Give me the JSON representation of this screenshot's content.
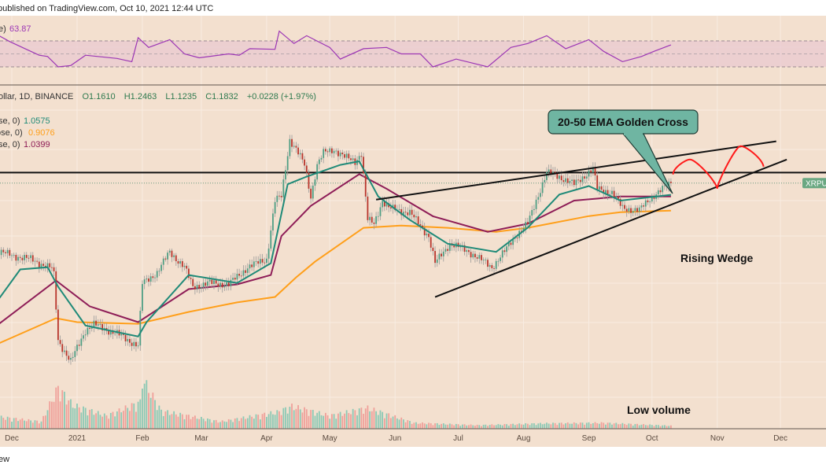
{
  "header": {
    "published": "published on TradingView.com, Oct 10, 2021 12:44 UTC"
  },
  "footer": {
    "brand_fragment": "ew"
  },
  "rsi_legend": {
    "label": "e)",
    "value": "63.87"
  },
  "legend": {
    "symbol": "ollar, 1D, BINANCE",
    "open": "O1.1610",
    "high": "H1.2463",
    "low": "L1.1235",
    "close": "C1.1832",
    "change": "+0.0228 (+1.97%)"
  },
  "ema_legend": [
    {
      "label": "se, 0)",
      "value": "1.0575",
      "color": "#1f8a78"
    },
    {
      "label": "ose, 0)",
      "value": "0.9076",
      "color": "#ff9f1a"
    },
    {
      "label": "se, 0)",
      "value": "1.0399",
      "color": "#8e1d57"
    }
  ],
  "annotations": {
    "callout": "20-50 EMA Golden Cross",
    "pattern": "Rising Wedge",
    "volume_note": "Low volume",
    "price_tag": "XRPUS"
  },
  "colors": {
    "background": "#f3e0cf",
    "up": "#4e9e84",
    "down": "#b8352c",
    "rsi": "#9c36b5",
    "callout": "#6fb5a2",
    "projection": "#ff1a1a"
  },
  "chart_data": {
    "type": "candlestick",
    "scale": "log",
    "ylim": [
      0.111,
      3.0
    ],
    "grid": true,
    "x_ticks": [
      {
        "label": "Dec",
        "date": "2020-12-01"
      },
      {
        "label": "2021",
        "date": "2021-01-01"
      },
      {
        "label": "Feb",
        "date": "2021-02-01"
      },
      {
        "label": "Mar",
        "date": "2021-03-01"
      },
      {
        "label": "Apr",
        "date": "2021-04-01"
      },
      {
        "label": "May",
        "date": "2021-05-01"
      },
      {
        "label": "Jun",
        "date": "2021-06-01"
      },
      {
        "label": "Jul",
        "date": "2021-07-01"
      },
      {
        "label": "Aug",
        "date": "2021-08-01"
      },
      {
        "label": "Sep",
        "date": "2021-09-01"
      },
      {
        "label": "Oct",
        "date": "2021-10-01"
      },
      {
        "label": "Nov",
        "date": "2021-11-01"
      },
      {
        "label": "Dec",
        "date": "2021-12-01"
      }
    ],
    "close": [
      [
        "2020-11-25",
        0.61
      ],
      [
        "2020-12-01",
        0.59
      ],
      [
        "2020-12-10",
        0.568
      ],
      [
        "2020-12-20",
        0.52
      ],
      [
        "2020-12-21",
        0.488
      ],
      [
        "2020-12-23",
        0.26
      ],
      [
        "2020-12-29",
        0.212
      ],
      [
        "2021-01-05",
        0.287
      ],
      [
        "2021-01-09",
        0.303
      ],
      [
        "2021-01-20",
        0.277
      ],
      [
        "2021-01-30",
        0.247
      ],
      [
        "2021-02-01",
        0.45
      ],
      [
        "2021-02-08",
        0.5
      ],
      [
        "2021-02-14",
        0.61
      ],
      [
        "2021-02-21",
        0.526
      ],
      [
        "2021-02-25",
        0.436
      ],
      [
        "2021-03-05",
        0.452
      ],
      [
        "2021-03-14",
        0.446
      ],
      [
        "2021-03-23",
        0.526
      ],
      [
        "2021-04-01",
        0.568
      ],
      [
        "2021-04-05",
        1.0
      ],
      [
        "2021-04-08",
        1.04
      ],
      [
        "2021-04-12",
        1.8
      ],
      [
        "2021-04-15",
        1.64
      ],
      [
        "2021-04-19",
        1.41
      ],
      [
        "2021-04-22",
        1.04
      ],
      [
        "2021-04-25",
        1.41
      ],
      [
        "2021-04-28",
        1.58
      ],
      [
        "2021-05-03",
        1.64
      ],
      [
        "2021-05-08",
        1.52
      ],
      [
        "2021-05-13",
        1.46
      ],
      [
        "2021-05-16",
        1.58
      ],
      [
        "2021-05-19",
        0.83
      ],
      [
        "2021-05-22",
        0.8
      ],
      [
        "2021-05-26",
        1.0
      ],
      [
        "2021-05-29",
        0.93
      ],
      [
        "2021-06-08",
        0.89
      ],
      [
        "2021-06-17",
        0.71
      ],
      [
        "2021-06-20",
        0.547
      ],
      [
        "2021-06-27",
        0.661
      ],
      [
        "2021-07-06",
        0.612
      ],
      [
        "2021-07-17",
        0.526
      ],
      [
        "2021-07-23",
        0.612
      ],
      [
        "2021-07-28",
        0.71
      ],
      [
        "2021-08-03",
        0.8
      ],
      [
        "2021-08-07",
        1.0
      ],
      [
        "2021-08-12",
        1.31
      ],
      [
        "2021-08-18",
        1.26
      ],
      [
        "2021-08-25",
        1.17
      ],
      [
        "2021-09-03",
        1.36
      ],
      [
        "2021-09-05",
        1.12
      ],
      [
        "2021-09-12",
        1.08
      ],
      [
        "2021-09-17",
        0.93
      ],
      [
        "2021-09-25",
        0.91
      ],
      [
        "2021-10-01",
        1.04
      ],
      [
        "2021-10-10",
        1.1832
      ]
    ],
    "ema20": [
      [
        "2020-11-25",
        0.389
      ],
      [
        "2020-12-05",
        0.515
      ],
      [
        "2020-12-18",
        0.526
      ],
      [
        "2020-12-23",
        0.436
      ],
      [
        "2021-01-05",
        0.3
      ],
      [
        "2021-01-30",
        0.27
      ],
      [
        "2021-02-03",
        0.31
      ],
      [
        "2021-02-23",
        0.488
      ],
      [
        "2021-03-18",
        0.452
      ],
      [
        "2021-04-03",
        0.547
      ],
      [
        "2021-04-11",
        1.17
      ],
      [
        "2021-04-20",
        1.26
      ],
      [
        "2021-05-06",
        1.41
      ],
      [
        "2021-05-15",
        1.46
      ],
      [
        "2021-05-24",
        1.04
      ],
      [
        "2021-06-08",
        0.83
      ],
      [
        "2021-06-26",
        0.66
      ],
      [
        "2021-07-19",
        0.61
      ],
      [
        "2021-08-03",
        0.77
      ],
      [
        "2021-08-18",
        1.06
      ],
      [
        "2021-09-01",
        1.15
      ],
      [
        "2021-09-16",
        1.0
      ],
      [
        "2021-10-10",
        1.0575
      ]
    ],
    "ema50": [
      [
        "2020-11-25",
        0.305
      ],
      [
        "2020-12-22",
        0.463
      ],
      [
        "2021-01-07",
        0.361
      ],
      [
        "2021-01-30",
        0.31
      ],
      [
        "2021-02-23",
        0.426
      ],
      [
        "2021-03-18",
        0.446
      ],
      [
        "2021-04-03",
        0.488
      ],
      [
        "2021-04-08",
        0.71
      ],
      [
        "2021-04-22",
        0.95
      ],
      [
        "2021-05-15",
        1.29
      ],
      [
        "2021-05-28",
        1.12
      ],
      [
        "2021-06-19",
        0.86
      ],
      [
        "2021-07-15",
        0.74
      ],
      [
        "2021-08-03",
        0.8
      ],
      [
        "2021-08-25",
        1.0
      ],
      [
        "2021-09-16",
        1.04
      ],
      [
        "2021-10-10",
        1.0399
      ]
    ],
    "ema200": [
      [
        "2020-11-25",
        0.253
      ],
      [
        "2020-12-22",
        0.322
      ],
      [
        "2021-01-01",
        0.31
      ],
      [
        "2021-01-30",
        0.305
      ],
      [
        "2021-02-23",
        0.342
      ],
      [
        "2021-03-18",
        0.375
      ],
      [
        "2021-04-05",
        0.395
      ],
      [
        "2021-04-15",
        0.477
      ],
      [
        "2021-04-24",
        0.555
      ],
      [
        "2021-05-17",
        0.769
      ],
      [
        "2021-06-04",
        0.786
      ],
      [
        "2021-06-26",
        0.769
      ],
      [
        "2021-07-19",
        0.74
      ],
      [
        "2021-08-03",
        0.769
      ],
      [
        "2021-09-01",
        0.861
      ],
      [
        "2021-09-16",
        0.894
      ],
      [
        "2021-10-10",
        0.9076
      ]
    ],
    "resistance": 1.31,
    "last_price": 1.1832,
    "wedge_upper": [
      [
        "2021-05-23",
        1.009
      ],
      [
        "2021-11-29",
        1.77
      ]
    ],
    "wedge_lower": [
      [
        "2021-06-20",
        0.395
      ],
      [
        "2021-12-04",
        1.485
      ]
    ],
    "projection": [
      [
        "2021-10-11",
        1.286
      ],
      [
        "2021-10-19",
        1.485
      ],
      [
        "2021-11-01",
        1.122
      ],
      [
        "2021-11-12",
        1.69
      ],
      [
        "2021-11-23",
        1.387
      ]
    ],
    "rsi": {
      "bands": [
        30,
        50,
        70
      ],
      "values": [
        [
          "2020-11-25",
          78
        ],
        [
          "2020-11-30",
          69
        ],
        [
          "2020-12-06",
          60
        ],
        [
          "2020-12-14",
          48
        ],
        [
          "2020-12-18",
          46
        ],
        [
          "2020-12-23",
          30
        ],
        [
          "2020-12-29",
          32
        ],
        [
          "2021-01-05",
          48
        ],
        [
          "2021-01-20",
          43
        ],
        [
          "2021-01-27",
          38
        ],
        [
          "2021-01-30",
          75
        ],
        [
          "2021-02-04",
          60
        ],
        [
          "2021-02-14",
          72
        ],
        [
          "2021-02-21",
          50
        ],
        [
          "2021-02-28",
          44
        ],
        [
          "2021-03-14",
          50
        ],
        [
          "2021-03-19",
          48
        ],
        [
          "2021-03-24",
          58
        ],
        [
          "2021-04-05",
          57
        ],
        [
          "2021-04-07",
          85
        ],
        [
          "2021-04-14",
          66
        ],
        [
          "2021-04-20",
          78
        ],
        [
          "2021-05-01",
          60
        ],
        [
          "2021-05-06",
          42
        ],
        [
          "2021-05-17",
          58
        ],
        [
          "2021-05-28",
          60
        ],
        [
          "2021-06-04",
          50
        ],
        [
          "2021-06-13",
          50
        ],
        [
          "2021-06-19",
          30
        ],
        [
          "2021-06-30",
          42
        ],
        [
          "2021-07-15",
          30
        ],
        [
          "2021-07-26",
          60
        ],
        [
          "2021-08-03",
          66
        ],
        [
          "2021-08-12",
          78
        ],
        [
          "2021-08-21",
          58
        ],
        [
          "2021-09-01",
          72
        ],
        [
          "2021-09-08",
          54
        ],
        [
          "2021-09-17",
          38
        ],
        [
          "2021-09-26",
          46
        ],
        [
          "2021-10-02",
          54
        ],
        [
          "2021-10-10",
          63.87
        ]
      ]
    },
    "volume_relative": [
      [
        "2020-11-25",
        20
      ],
      [
        "2020-12-15",
        12
      ],
      [
        "2020-12-23",
        70
      ],
      [
        "2020-12-30",
        40
      ],
      [
        "2021-01-15",
        22
      ],
      [
        "2021-01-31",
        45
      ],
      [
        "2021-02-01",
        85
      ],
      [
        "2021-02-10",
        30
      ],
      [
        "2021-03-10",
        12
      ],
      [
        "2021-04-06",
        28
      ],
      [
        "2021-04-13",
        38
      ],
      [
        "2021-05-01",
        22
      ],
      [
        "2021-05-19",
        35
      ],
      [
        "2021-06-10",
        10
      ],
      [
        "2021-07-10",
        6
      ],
      [
        "2021-08-10",
        9
      ],
      [
        "2021-09-07",
        10
      ],
      [
        "2021-10-10",
        5
      ]
    ]
  }
}
